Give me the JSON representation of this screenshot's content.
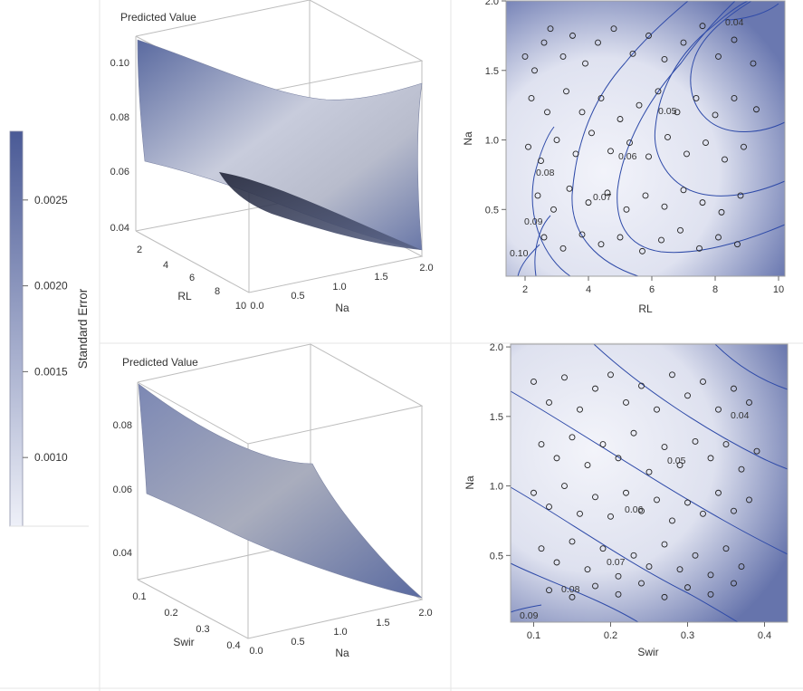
{
  "colorbar": {
    "title": "Standard Error",
    "ticks": [
      {
        "value": 0.0025,
        "label": "0.0025"
      },
      {
        "value": 0.002,
        "label": "0.0020"
      },
      {
        "value": 0.0015,
        "label": "0.0015"
      },
      {
        "value": 0.001,
        "label": "0.0010"
      }
    ],
    "range": [
      0.0006,
      0.0029
    ],
    "color_low": "#eef0f8",
    "color_high": "#4a5a96"
  },
  "chart_data": [
    {
      "type": "surface",
      "title": "Predicted Value",
      "xlabel": "RL",
      "ylabel": "Na",
      "zlabel": "",
      "x_ticks": [
        "2",
        "4",
        "6",
        "8",
        "10"
      ],
      "y_ticks": [
        "0.0",
        "0.5",
        "1.0",
        "1.5",
        "2.0"
      ],
      "z_ticks": [
        "0.04",
        "0.06",
        "0.08",
        "0.10"
      ],
      "corners": [
        {
          "RL": 1.5,
          "Na": 0.0,
          "z": 0.107
        },
        {
          "RL": 10,
          "Na": 0.0,
          "z": 0.057
        },
        {
          "RL": 10,
          "Na": 2.0,
          "z": 0.037
        },
        {
          "RL": 1.5,
          "Na": 2.0,
          "z": 0.095
        }
      ]
    },
    {
      "type": "contour",
      "xlabel": "RL",
      "ylabel": "Na",
      "x_ticks": [
        "2",
        "4",
        "6",
        "8",
        "10"
      ],
      "y_ticks": [
        "0.5",
        "1.0",
        "1.5",
        "2.0"
      ],
      "xlim": [
        1.4,
        10.2
      ],
      "ylim": [
        0.02,
        2.0
      ],
      "contour_levels": [
        "0.10",
        "0.09",
        "0.08",
        "0.07",
        "0.06",
        "0.05",
        "0.04"
      ],
      "points": [
        [
          2.0,
          1.6
        ],
        [
          2.3,
          1.5
        ],
        [
          2.6,
          1.7
        ],
        [
          2.8,
          1.8
        ],
        [
          3.2,
          1.6
        ],
        [
          3.5,
          1.75
        ],
        [
          3.9,
          1.55
        ],
        [
          4.3,
          1.7
        ],
        [
          4.8,
          1.8
        ],
        [
          5.4,
          1.62
        ],
        [
          5.9,
          1.75
        ],
        [
          6.4,
          1.58
        ],
        [
          7.0,
          1.7
        ],
        [
          7.6,
          1.82
        ],
        [
          8.1,
          1.6
        ],
        [
          8.6,
          1.72
        ],
        [
          9.2,
          1.55
        ],
        [
          2.2,
          1.3
        ],
        [
          2.7,
          1.2
        ],
        [
          3.3,
          1.35
        ],
        [
          3.8,
          1.2
        ],
        [
          4.4,
          1.3
        ],
        [
          5.0,
          1.15
        ],
        [
          5.6,
          1.25
        ],
        [
          6.2,
          1.35
        ],
        [
          6.8,
          1.2
        ],
        [
          7.4,
          1.3
        ],
        [
          8.0,
          1.18
        ],
        [
          8.6,
          1.3
        ],
        [
          9.3,
          1.22
        ],
        [
          2.1,
          0.95
        ],
        [
          2.5,
          0.85
        ],
        [
          3.0,
          1.0
        ],
        [
          3.6,
          0.9
        ],
        [
          4.1,
          1.05
        ],
        [
          4.7,
          0.92
        ],
        [
          5.3,
          0.98
        ],
        [
          5.9,
          0.88
        ],
        [
          6.5,
          1.02
        ],
        [
          7.1,
          0.9
        ],
        [
          7.7,
          0.98
        ],
        [
          8.3,
          0.86
        ],
        [
          8.9,
          0.95
        ],
        [
          2.4,
          0.6
        ],
        [
          2.9,
          0.5
        ],
        [
          3.4,
          0.65
        ],
        [
          4.0,
          0.55
        ],
        [
          4.6,
          0.62
        ],
        [
          5.2,
          0.5
        ],
        [
          5.8,
          0.6
        ],
        [
          6.4,
          0.52
        ],
        [
          7.0,
          0.64
        ],
        [
          7.6,
          0.55
        ],
        [
          8.2,
          0.48
        ],
        [
          8.8,
          0.6
        ],
        [
          2.6,
          0.3
        ],
        [
          3.2,
          0.22
        ],
        [
          3.8,
          0.32
        ],
        [
          4.4,
          0.25
        ],
        [
          5.0,
          0.3
        ],
        [
          5.7,
          0.2
        ],
        [
          6.3,
          0.28
        ],
        [
          6.9,
          0.35
        ],
        [
          7.5,
          0.22
        ],
        [
          8.1,
          0.3
        ],
        [
          8.7,
          0.25
        ]
      ]
    },
    {
      "type": "surface",
      "title": "Predicted Value",
      "xlabel": "Swir",
      "ylabel": "Na",
      "zlabel": "",
      "x_ticks": [
        "0.1",
        "0.2",
        "0.3",
        "0.4"
      ],
      "y_ticks": [
        "0.0",
        "0.5",
        "1.0",
        "1.5",
        "2.0"
      ],
      "z_ticks": [
        "0.04",
        "0.06",
        "0.08"
      ],
      "corners": [
        {
          "Swir": 0.07,
          "Na": 0.0,
          "z": 0.092
        },
        {
          "Swir": 0.42,
          "Na": 0.0,
          "z": 0.049
        },
        {
          "Swir": 0.42,
          "Na": 2.0,
          "z": 0.031
        },
        {
          "Swir": 0.07,
          "Na": 2.0,
          "z": 0.061
        }
      ]
    },
    {
      "type": "contour",
      "xlabel": "Swir",
      "ylabel": "Na",
      "x_ticks": [
        "0.1",
        "0.2",
        "0.3",
        "0.4"
      ],
      "y_ticks": [
        "0.5",
        "1.0",
        "1.5",
        "2.0"
      ],
      "xlim": [
        0.07,
        0.43
      ],
      "ylim": [
        0.02,
        2.02
      ],
      "contour_levels": [
        "0.09",
        "0.08",
        "0.07",
        "0.06",
        "0.05",
        "0.04"
      ],
      "points": [
        [
          0.1,
          1.75
        ],
        [
          0.12,
          1.6
        ],
        [
          0.14,
          1.78
        ],
        [
          0.16,
          1.55
        ],
        [
          0.18,
          1.7
        ],
        [
          0.2,
          1.8
        ],
        [
          0.22,
          1.6
        ],
        [
          0.24,
          1.72
        ],
        [
          0.26,
          1.55
        ],
        [
          0.28,
          1.8
        ],
        [
          0.3,
          1.65
        ],
        [
          0.32,
          1.75
        ],
        [
          0.34,
          1.55
        ],
        [
          0.36,
          1.7
        ],
        [
          0.38,
          1.6
        ],
        [
          0.11,
          1.3
        ],
        [
          0.13,
          1.2
        ],
        [
          0.15,
          1.35
        ],
        [
          0.17,
          1.15
        ],
        [
          0.19,
          1.3
        ],
        [
          0.21,
          1.2
        ],
        [
          0.23,
          1.38
        ],
        [
          0.25,
          1.1
        ],
        [
          0.27,
          1.28
        ],
        [
          0.29,
          1.15
        ],
        [
          0.31,
          1.32
        ],
        [
          0.33,
          1.2
        ],
        [
          0.35,
          1.3
        ],
        [
          0.37,
          1.12
        ],
        [
          0.39,
          1.25
        ],
        [
          0.1,
          0.95
        ],
        [
          0.12,
          0.85
        ],
        [
          0.14,
          1.0
        ],
        [
          0.16,
          0.8
        ],
        [
          0.18,
          0.92
        ],
        [
          0.2,
          0.78
        ],
        [
          0.22,
          0.95
        ],
        [
          0.24,
          0.82
        ],
        [
          0.26,
          0.9
        ],
        [
          0.28,
          0.75
        ],
        [
          0.3,
          0.88
        ],
        [
          0.32,
          0.8
        ],
        [
          0.34,
          0.95
        ],
        [
          0.36,
          0.82
        ],
        [
          0.38,
          0.9
        ],
        [
          0.11,
          0.55
        ],
        [
          0.13,
          0.45
        ],
        [
          0.15,
          0.6
        ],
        [
          0.17,
          0.4
        ],
        [
          0.19,
          0.55
        ],
        [
          0.21,
          0.35
        ],
        [
          0.23,
          0.5
        ],
        [
          0.25,
          0.42
        ],
        [
          0.27,
          0.58
        ],
        [
          0.29,
          0.4
        ],
        [
          0.31,
          0.5
        ],
        [
          0.33,
          0.36
        ],
        [
          0.35,
          0.55
        ],
        [
          0.37,
          0.42
        ],
        [
          0.12,
          0.25
        ],
        [
          0.15,
          0.2
        ],
        [
          0.18,
          0.28
        ],
        [
          0.21,
          0.22
        ],
        [
          0.24,
          0.3
        ],
        [
          0.27,
          0.2
        ],
        [
          0.3,
          0.27
        ],
        [
          0.33,
          0.22
        ],
        [
          0.36,
          0.3
        ]
      ]
    }
  ]
}
